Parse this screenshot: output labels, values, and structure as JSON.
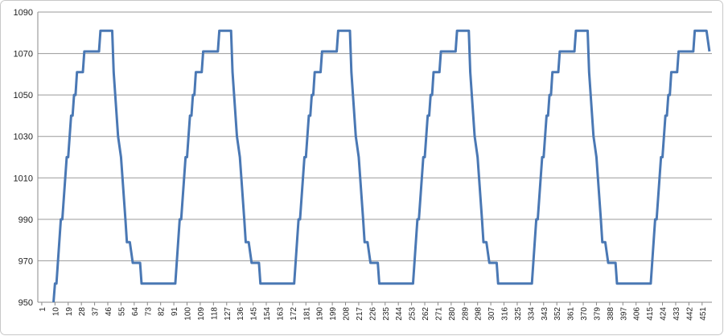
{
  "chart_data": {
    "type": "line",
    "x": [
      9,
      10,
      11,
      14,
      15,
      18,
      19,
      21,
      22,
      23,
      24,
      25,
      29,
      30,
      40,
      41,
      49,
      50,
      53,
      55,
      56,
      58,
      59,
      61,
      63,
      68,
      69,
      92,
      95,
      96,
      99,
      100,
      102,
      103,
      104,
      105,
      106,
      110,
      111,
      121,
      122,
      130,
      131,
      134,
      136,
      137,
      139,
      140,
      142,
      144,
      149,
      150,
      173,
      176,
      177,
      180,
      181,
      183,
      184,
      185,
      186,
      187,
      191,
      192,
      202,
      203,
      211,
      212,
      215,
      217,
      218,
      220,
      221,
      223,
      225,
      230,
      231,
      254,
      257,
      258,
      261,
      262,
      264,
      265,
      266,
      267,
      268,
      272,
      273,
      283,
      284,
      292,
      293,
      296,
      298,
      299,
      301,
      302,
      304,
      306,
      311,
      312,
      335,
      338,
      339,
      342,
      343,
      345,
      346,
      347,
      348,
      349,
      353,
      354,
      364,
      365,
      373,
      374,
      377,
      379,
      380,
      382,
      383,
      385,
      387,
      392,
      393,
      416,
      419,
      420,
      423,
      424,
      426,
      427,
      428,
      429,
      430,
      434,
      435,
      445,
      446,
      454,
      456
    ],
    "series": [
      {
        "color": "#4a78b4",
        "values": [
          950,
          959,
          959,
          990,
          990,
          1020,
          1020,
          1040,
          1040,
          1050,
          1050,
          1061,
          1061,
          1071,
          1071,
          1081,
          1081,
          1061,
          1030,
          1020,
          1010,
          990,
          979,
          979,
          969,
          969,
          959,
          959,
          990,
          990,
          1020,
          1020,
          1040,
          1040,
          1050,
          1050,
          1061,
          1061,
          1071,
          1071,
          1081,
          1081,
          1061,
          1030,
          1020,
          1010,
          990,
          979,
          979,
          969,
          969,
          959,
          959,
          990,
          990,
          1020,
          1020,
          1040,
          1040,
          1050,
          1050,
          1061,
          1061,
          1071,
          1071,
          1081,
          1081,
          1061,
          1030,
          1020,
          1010,
          990,
          979,
          979,
          969,
          969,
          959,
          959,
          990,
          990,
          1020,
          1020,
          1040,
          1040,
          1050,
          1050,
          1061,
          1061,
          1071,
          1071,
          1081,
          1081,
          1061,
          1030,
          1020,
          1010,
          990,
          979,
          979,
          969,
          969,
          959,
          959,
          990,
          990,
          1020,
          1020,
          1040,
          1040,
          1050,
          1050,
          1061,
          1061,
          1071,
          1071,
          1081,
          1081,
          1061,
          1030,
          1020,
          1010,
          990,
          979,
          979,
          969,
          969,
          959,
          959,
          990,
          990,
          1020,
          1020,
          1040,
          1040,
          1050,
          1050,
          1061,
          1061,
          1071,
          1071,
          1081,
          1081,
          1071
        ]
      }
    ],
    "xlim": [
      -1.7,
      457.7
    ],
    "xticks": [
      1,
      10,
      19,
      28,
      37,
      46,
      55,
      64,
      73,
      82,
      91,
      100,
      109,
      118,
      127,
      136,
      145,
      154,
      163,
      172,
      181,
      190,
      199,
      208,
      217,
      226,
      235,
      244,
      253,
      262,
      271,
      280,
      289,
      298,
      307,
      316,
      325,
      334,
      343,
      352,
      361,
      370,
      379,
      388,
      397,
      406,
      415,
      424,
      433,
      442,
      451
    ],
    "ylim": [
      950,
      1090
    ],
    "yticks": [
      950,
      970,
      990,
      1010,
      1030,
      1050,
      1070,
      1090
    ],
    "grid": true
  }
}
